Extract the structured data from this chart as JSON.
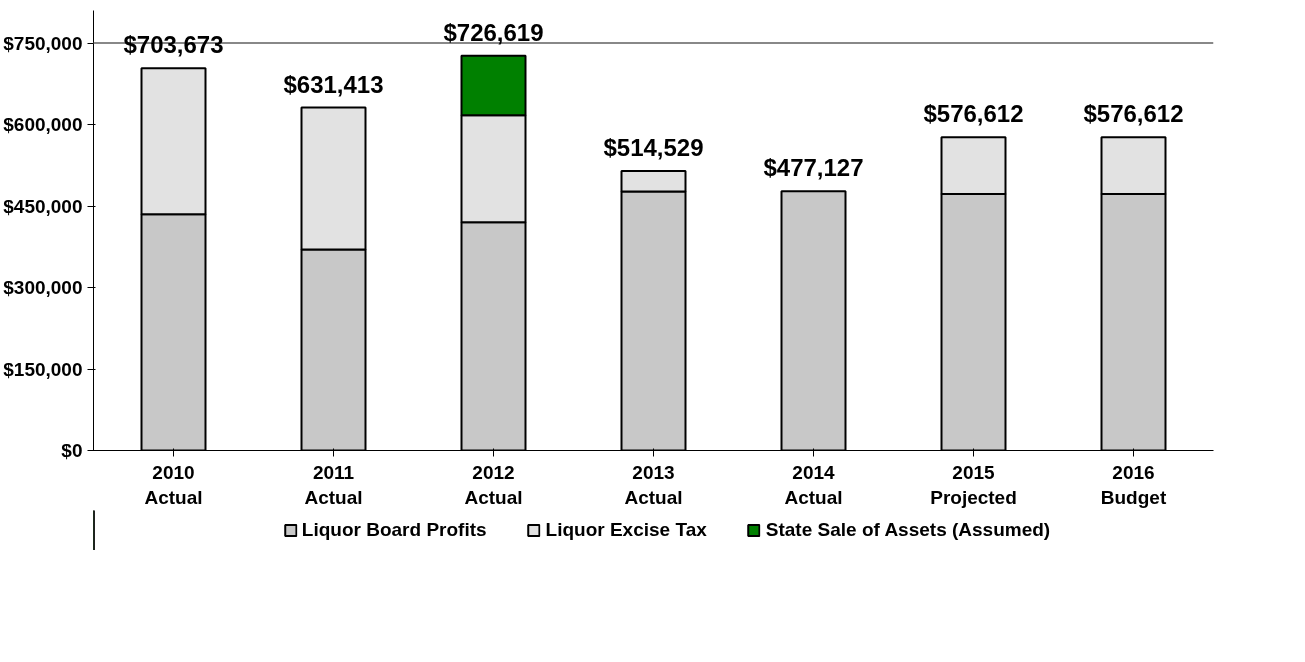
{
  "chart_data": {
    "type": "bar",
    "stacked": true,
    "categories": [
      "2010\nActual",
      "2011\nActual",
      "2012\nActual",
      "2013\nActual",
      "2014\nActual",
      "2015\nProjected",
      "2016\nBudget"
    ],
    "series": [
      {
        "name": "Liquor Board Profits",
        "color": "#c8c8c8",
        "values": [
          435000,
          370000,
          420000,
          477000,
          477127,
          472000,
          472000
        ]
      },
      {
        "name": "Liquor Excise Tax",
        "color": "#e2e2e2",
        "values": [
          268673,
          261413,
          197000,
          37529,
          null,
          104612,
          104612
        ]
      },
      {
        "name": "State Sale of Assets (Assumed)",
        "color": "#008000",
        "values": [
          null,
          null,
          109619,
          null,
          null,
          null,
          null
        ]
      }
    ],
    "totals": [
      "$703,673",
      "$631,413",
      "$726,619",
      "$514,529",
      "$477,127",
      "$576,612",
      "$576,612"
    ],
    "ylim": [
      0,
      810000
    ],
    "ref_lines": [
      {
        "axis": "y",
        "value": 750000,
        "color": "#888888"
      }
    ],
    "yticks": [
      {
        "value": 0,
        "label": "$0"
      },
      {
        "value": 150000,
        "label": "$150,000"
      },
      {
        "value": 300000,
        "label": "$300,000"
      },
      {
        "value": 450000,
        "label": "$450,000"
      },
      {
        "value": 600000,
        "label": "$600,000"
      },
      {
        "value": 750000,
        "label": "$750,000"
      }
    ],
    "grid": false,
    "legend": "bottom"
  }
}
